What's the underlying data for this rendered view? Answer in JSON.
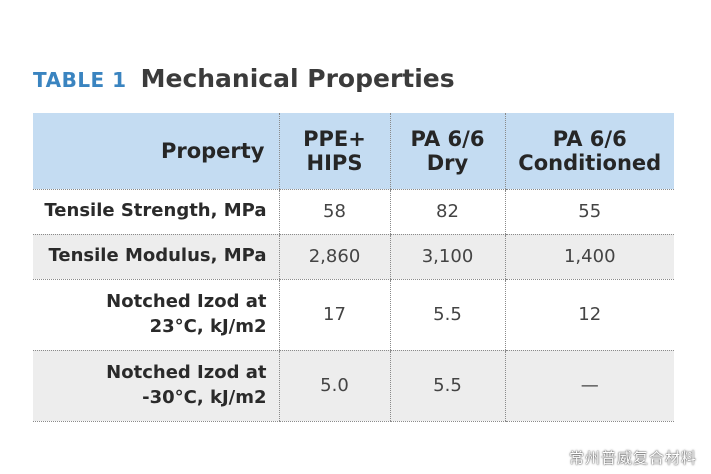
{
  "table": {
    "label": "TABLE 1",
    "title": "Mechanical Properties",
    "columns": [
      {
        "lines": [
          "Property"
        ]
      },
      {
        "lines": [
          "PPE+",
          "HIPS"
        ]
      },
      {
        "lines": [
          "PA 6/6",
          "Dry"
        ]
      },
      {
        "lines": [
          "PA 6/6",
          "Conditioned"
        ]
      }
    ],
    "rows": [
      {
        "property": [
          "Tensile Strength, MPa"
        ],
        "values": [
          "58",
          "82",
          "55"
        ]
      },
      {
        "property": [
          "Tensile Modulus, MPa"
        ],
        "values": [
          "2,860",
          "3,100",
          "1,400"
        ]
      },
      {
        "property": [
          "Notched Izod at",
          "23°C, kJ/m2"
        ],
        "values": [
          "17",
          "5.5",
          "12"
        ]
      },
      {
        "property": [
          "Notched Izod at",
          "-30°C, kJ/m2"
        ],
        "values": [
          "5.0",
          "5.5",
          "—"
        ]
      }
    ]
  },
  "watermark": "常州普威复合材料",
  "colors": {
    "label_blue": "#3a84c0",
    "header_bg": "#c4dcf2",
    "stripe_bg": "#ededed"
  }
}
